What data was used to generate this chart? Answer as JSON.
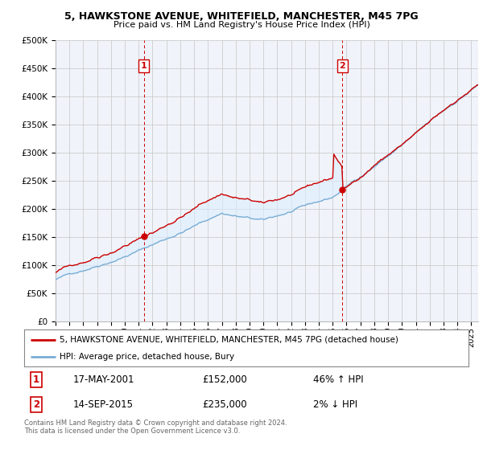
{
  "title1": "5, HAWKSTONE AVENUE, WHITEFIELD, MANCHESTER, M45 7PG",
  "title2": "Price paid vs. HM Land Registry's House Price Index (HPI)",
  "ylabel_ticks": [
    "£0",
    "£50K",
    "£100K",
    "£150K",
    "£200K",
    "£250K",
    "£300K",
    "£350K",
    "£400K",
    "£450K",
    "£500K"
  ],
  "ytick_values": [
    0,
    50000,
    100000,
    150000,
    200000,
    250000,
    300000,
    350000,
    400000,
    450000,
    500000
  ],
  "xlim_start": 1995.0,
  "xlim_end": 2025.5,
  "ylim": [
    0,
    500000
  ],
  "sale1_x": 2001.38,
  "sale1_y": 152000,
  "sale2_x": 2015.71,
  "sale2_y": 235000,
  "sale1_date": "17-MAY-2001",
  "sale1_price": "£152,000",
  "sale1_hpi": "46% ↑ HPI",
  "sale2_date": "14-SEP-2015",
  "sale2_price": "£235,000",
  "sale2_hpi": "2% ↓ HPI",
  "legend_line1": "5, HAWKSTONE AVENUE, WHITEFIELD, MANCHESTER, M45 7PG (detached house)",
  "legend_line2": "HPI: Average price, detached house, Bury",
  "footer": "Contains HM Land Registry data © Crown copyright and database right 2024.\nThis data is licensed under the Open Government Licence v3.0.",
  "line_color_red": "#cc0000",
  "line_color_blue": "#7aadd4",
  "fill_color_blue": "#ddeeff",
  "bg_color": "#ffffff",
  "grid_color": "#cccccc",
  "axes_bg": "#f0f4fa"
}
